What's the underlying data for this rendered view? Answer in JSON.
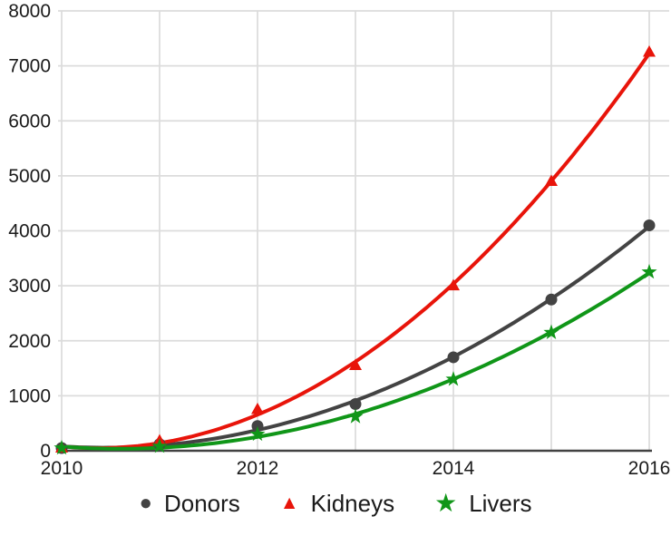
{
  "colors": {
    "background": "#ffffff",
    "grid": "#dcdcdc",
    "axis": "#424242",
    "tick_text": "#1b1b1b",
    "legend_text": "#1b1b1b"
  },
  "chart_data": {
    "type": "scatter",
    "title": "",
    "x": [
      2010,
      2011,
      2012,
      2013,
      2014,
      2015,
      2016
    ],
    "series": [
      {
        "name": "Donors",
        "marker": "circle",
        "color": "#434343",
        "values": [
          50,
          120,
          450,
          850,
          1700,
          2750,
          4100
        ]
      },
      {
        "name": "Kidneys",
        "marker": "triangle",
        "color": "#e8140a",
        "values": [
          30,
          180,
          750,
          1550,
          3000,
          4900,
          7250
        ]
      },
      {
        "name": "Livers",
        "marker": "star",
        "color": "#109618",
        "values": [
          50,
          80,
          300,
          620,
          1300,
          2150,
          3250
        ]
      }
    ],
    "trendline": "quadratic",
    "xlim": [
      2010,
      2016
    ],
    "ylim": [
      0,
      8000
    ],
    "y_tick_labels": [
      "0",
      "1000",
      "2000",
      "3000",
      "4000",
      "5000",
      "6000",
      "7000",
      "8000"
    ],
    "x_tick_labels": [
      "2010",
      "2012",
      "2014",
      "2016"
    ],
    "grid": true,
    "legend_position": "bottom"
  }
}
